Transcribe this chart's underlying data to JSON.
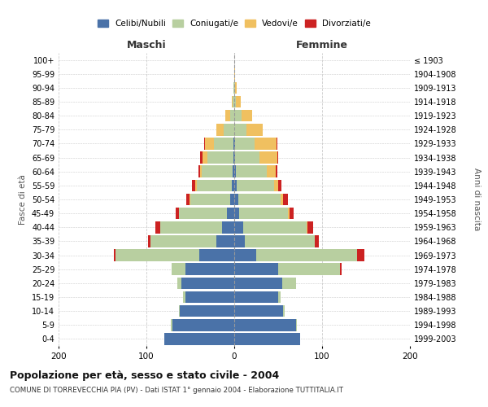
{
  "age_groups": [
    "0-4",
    "5-9",
    "10-14",
    "15-19",
    "20-24",
    "25-29",
    "30-34",
    "35-39",
    "40-44",
    "45-49",
    "50-54",
    "55-59",
    "60-64",
    "65-69",
    "70-74",
    "75-79",
    "80-84",
    "85-89",
    "90-94",
    "95-99",
    "100+"
  ],
  "birth_years": [
    "1999-2003",
    "1994-1998",
    "1989-1993",
    "1984-1988",
    "1979-1983",
    "1974-1978",
    "1969-1973",
    "1964-1968",
    "1959-1963",
    "1954-1958",
    "1949-1953",
    "1944-1948",
    "1939-1943",
    "1934-1938",
    "1929-1933",
    "1924-1928",
    "1919-1923",
    "1914-1918",
    "1909-1913",
    "1904-1908",
    "≤ 1903"
  ],
  "colors": {
    "celibi": "#4a72a8",
    "coniugati": "#b8cfa0",
    "vedovi": "#f0c060",
    "divorziati": "#cc2222"
  },
  "males": {
    "celibi": [
      80,
      70,
      62,
      56,
      60,
      56,
      40,
      20,
      14,
      8,
      5,
      3,
      2,
      1,
      1,
      0,
      0,
      0,
      0,
      0,
      0
    ],
    "coniugati": [
      0,
      2,
      1,
      2,
      5,
      15,
      95,
      75,
      70,
      55,
      45,
      40,
      35,
      30,
      22,
      12,
      5,
      2,
      1,
      0,
      0
    ],
    "vedovi": [
      0,
      0,
      0,
      0,
      0,
      0,
      0,
      0,
      0,
      0,
      1,
      1,
      2,
      5,
      10,
      8,
      5,
      1,
      0,
      0,
      0
    ],
    "divorziati": [
      0,
      0,
      0,
      0,
      0,
      0,
      2,
      3,
      6,
      4,
      4,
      4,
      2,
      3,
      1,
      0,
      0,
      0,
      0,
      0,
      0
    ]
  },
  "females": {
    "nubili": [
      75,
      70,
      56,
      50,
      55,
      50,
      25,
      12,
      10,
      6,
      5,
      3,
      2,
      1,
      1,
      0,
      0,
      0,
      0,
      0,
      0
    ],
    "coniugati": [
      0,
      1,
      1,
      3,
      15,
      70,
      115,
      80,
      72,
      55,
      48,
      42,
      35,
      28,
      22,
      14,
      8,
      2,
      1,
      0,
      0
    ],
    "vedovi": [
      0,
      0,
      0,
      0,
      0,
      0,
      0,
      0,
      1,
      2,
      3,
      5,
      10,
      20,
      25,
      18,
      12,
      5,
      2,
      1,
      0
    ],
    "divorziati": [
      0,
      0,
      0,
      0,
      0,
      2,
      8,
      4,
      7,
      5,
      5,
      4,
      2,
      1,
      1,
      0,
      0,
      0,
      0,
      0,
      0
    ]
  },
  "title": "Popolazione per età, sesso e stato civile - 2004",
  "subtitle": "COMUNE DI TORREVECCHIA PIA (PV) - Dati ISTAT 1° gennaio 2004 - Elaborazione TUTTITALIA.IT",
  "ylabel_left": "Fasce di età",
  "ylabel_right": "Anni di nascita",
  "xlabel_maschi": "Maschi",
  "xlabel_femmine": "Femmine",
  "xlim": 200,
  "background_color": "#ffffff",
  "grid_color": "#cccccc"
}
